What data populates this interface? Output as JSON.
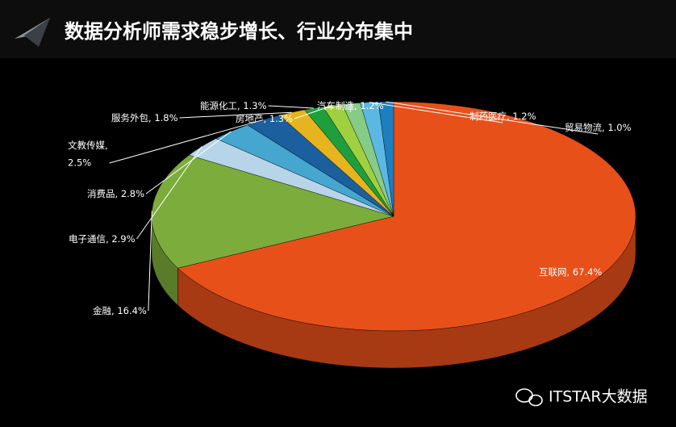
{
  "chart_data": {
    "type": "pie3d",
    "title": "数据分析师需求稳步增长、行业分布集中",
    "categories": [
      "互联网",
      "金融",
      "电子通信",
      "消费品",
      "文教传媒",
      "服务外包",
      "能源化工",
      "房地产",
      "汽车制造",
      "制药医疗",
      "贸易物流"
    ],
    "values": [
      67.4,
      16.4,
      2.9,
      2.8,
      2.5,
      1.8,
      1.3,
      1.3,
      1.2,
      1.2,
      1.0
    ],
    "value_labels": [
      "67.4%",
      "16.4%",
      "2.9%",
      "2.8%",
      "2.5%",
      "1.8%",
      "1.3%",
      "1.3%",
      "1.2%",
      "1.2%",
      "1.0%"
    ],
    "label_separator": ", ",
    "colors": [
      "#e8501a",
      "#7cac3c",
      "#b8d4e8",
      "#45a6cf",
      "#1b5f9e",
      "#e6b41e",
      "#1f9e3e",
      "#9fd040",
      "#86cc86",
      "#5cb8e2",
      "#1e7fc0"
    ],
    "watermark": "ITSTAR大数据"
  }
}
